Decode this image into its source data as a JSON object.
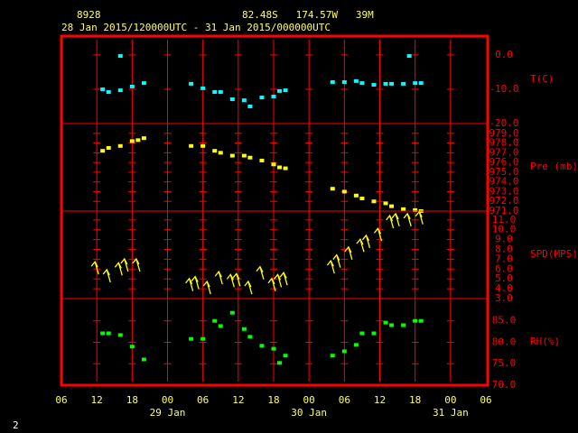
{
  "header": {
    "station": "8928",
    "location": "82.48S   174.57W   39M",
    "period": "28 Jan 2015/120000UTC - 31 Jan 2015/000000UTC"
  },
  "page_number": "2",
  "chart_data": [
    {
      "type": "scatter",
      "y_label": "T(C)",
      "color": "#00ffff",
      "x": [
        13,
        14,
        16,
        18,
        20,
        16,
        28,
        30,
        32,
        33,
        35,
        37,
        38,
        40,
        42,
        43,
        44,
        52,
        54,
        56,
        57,
        59,
        61,
        62,
        64,
        66,
        67,
        65
      ],
      "values": [
        -10.0,
        -10.8,
        -10.3,
        -9.2,
        -8.2,
        -0.3,
        -8.4,
        -9.7,
        -10.8,
        -10.8,
        -12.9,
        -13.2,
        -15.0,
        -12.4,
        -12.1,
        -10.5,
        -10.3,
        -7.9,
        -7.9,
        -7.6,
        -8.2,
        -8.7,
        -8.4,
        -8.4,
        -8.4,
        -8.2,
        -8.2,
        -0.3
      ],
      "ylim": [
        -20,
        5.5
      ],
      "yticks": [
        {
          "value": 0,
          "label": "0.0"
        },
        {
          "value": -10,
          "label": "-10.0"
        },
        {
          "value": -20,
          "label": "-20.0"
        }
      ]
    },
    {
      "type": "scatter",
      "y_label": "Pre (mb)",
      "color": "#ffff00",
      "x": [
        13,
        14,
        16,
        18,
        19,
        20,
        28,
        30,
        32,
        33,
        35,
        37,
        38,
        40,
        42,
        43,
        44,
        52,
        54,
        56,
        57,
        59,
        61,
        62,
        64,
        66,
        67
      ],
      "values": [
        977.2,
        977.5,
        977.7,
        978.2,
        978.3,
        978.5,
        977.7,
        977.7,
        977.2,
        977.0,
        976.7,
        976.7,
        976.5,
        976.2,
        975.8,
        975.5,
        975.4,
        973.3,
        973.0,
        972.6,
        972.3,
        972.0,
        971.8,
        971.5,
        971.2,
        971.1,
        971.0
      ],
      "ylim": [
        971,
        980
      ],
      "yticks": [
        {
          "value": 979,
          "label": "979.0"
        },
        {
          "value": 978,
          "label": "978.0"
        },
        {
          "value": 977,
          "label": "977.0"
        },
        {
          "value": 976,
          "label": "976.0"
        },
        {
          "value": 975,
          "label": "975.0"
        },
        {
          "value": 974,
          "label": "974.0"
        },
        {
          "value": 973,
          "label": "973.0"
        },
        {
          "value": 972,
          "label": "972.0"
        },
        {
          "value": 971,
          "label": "971.0"
        }
      ]
    },
    {
      "type": "quiver",
      "y_label": "SPD(MPS)",
      "color": "#ffff00",
      "x": [
        12,
        14,
        16,
        17,
        19,
        28,
        29,
        31,
        33,
        35,
        36,
        38,
        40,
        42,
        43,
        44,
        52,
        53,
        55,
        57,
        58,
        60,
        62,
        63,
        65,
        67
      ],
      "values": [
        6.1,
        5.3,
        6.0,
        6.4,
        6.4,
        4.4,
        4.6,
        4.1,
        5.1,
        4.8,
        4.9,
        4.1,
        5.6,
        4.4,
        4.8,
        5.0,
        6.2,
        6.8,
        7.6,
        8.4,
        8.8,
        9.5,
        10.8,
        11.0,
        11.0,
        11.2
      ],
      "ylim": [
        3,
        11.9
      ],
      "yticks": [
        {
          "value": 11,
          "label": "11.0"
        },
        {
          "value": 10,
          "label": "10.0"
        },
        {
          "value": 9,
          "label": "9.0"
        },
        {
          "value": 8,
          "label": "8.0"
        },
        {
          "value": 7,
          "label": "7.0"
        },
        {
          "value": 6,
          "label": "6.0"
        },
        {
          "value": 5,
          "label": "5.0"
        },
        {
          "value": 4,
          "label": "4.0"
        },
        {
          "value": 3,
          "label": "3.0"
        }
      ]
    },
    {
      "type": "scatter",
      "y_label": "RH(%)",
      "color": "#00ff00",
      "x": [
        13,
        14,
        16,
        18,
        20,
        28,
        30,
        32,
        33,
        35,
        37,
        38,
        40,
        42,
        43,
        44,
        52,
        54,
        56,
        57,
        59,
        61,
        62,
        64,
        66,
        67
      ],
      "values": [
        82.1,
        82.1,
        81.7,
        79.0,
        76.0,
        80.8,
        80.8,
        85.0,
        83.8,
        86.9,
        83.1,
        81.3,
        79.2,
        78.5,
        75.2,
        76.9,
        76.9,
        77.9,
        79.4,
        82.1,
        82.1,
        84.6,
        84.0,
        84.0,
        85.0,
        85.0
      ],
      "ylim": [
        70,
        90.2
      ],
      "yticks": [
        {
          "value": 85,
          "label": "85.0"
        },
        {
          "value": 80,
          "label": "80.0"
        },
        {
          "value": 75,
          "label": "75.0"
        },
        {
          "value": 70,
          "label": "70.0"
        }
      ],
      "xlim": [
        6,
        78
      ],
      "xticks": [
        {
          "value": 6,
          "label": "06"
        },
        {
          "value": 12,
          "label": "12"
        },
        {
          "value": 18,
          "label": "18"
        },
        {
          "value": 24,
          "label": "00"
        },
        {
          "value": 30,
          "label": "06"
        },
        {
          "value": 36,
          "label": "12"
        },
        {
          "value": 42,
          "label": "18"
        },
        {
          "value": 48,
          "label": "00"
        },
        {
          "value": 54,
          "label": "06"
        },
        {
          "value": 60,
          "label": "12"
        },
        {
          "value": 66,
          "label": "18"
        },
        {
          "value": 72,
          "label": "00"
        },
        {
          "value": 78,
          "label": "06"
        }
      ],
      "date_ticks": [
        {
          "value": 24,
          "label": "29 Jan"
        },
        {
          "value": 48,
          "label": "30 Jan"
        },
        {
          "value": 72,
          "label": "31 Jan"
        }
      ]
    }
  ]
}
